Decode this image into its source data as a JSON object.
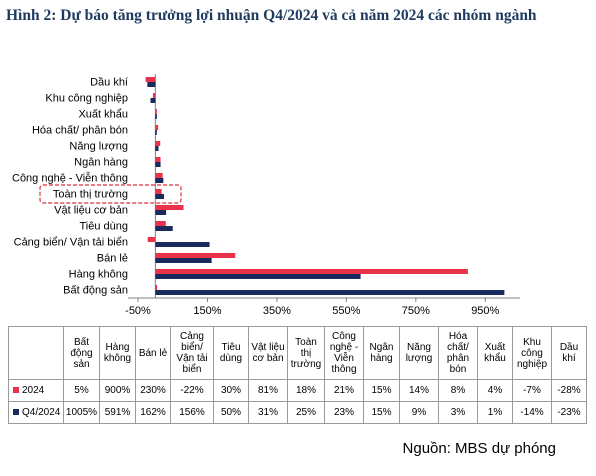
{
  "title": "Hình 2: Dự báo tăng trưởng lợi nhuận Q4/2024 và cả năm 2024 các nhóm ngành",
  "source": "Nguồn: MBS dự phóng",
  "colors": {
    "series_2024": "#e8334a",
    "series_q4": "#1b2a5c",
    "highlight": "#d9303f"
  },
  "chart_data": {
    "type": "bar",
    "orientation": "horizontal",
    "categories": [
      "Bất động sản",
      "Hàng không",
      "Bán lẻ",
      "Cảng biển/ Vận tải biển",
      "Tiêu dùng",
      "Vật liệu cơ bản",
      "Toàn thị trường",
      "Công nghệ - Viễn thông",
      "Ngân hàng",
      "Năng lượng",
      "Hóa chất/ phân bón",
      "Xuất khẩu",
      "Khu công nghiệp",
      "Dầu khí"
    ],
    "table_headers": [
      "Bất động sản",
      "Hàng không",
      "Bán lẻ",
      "Cảng biển/ Vận tải biển",
      "Tiêu dùng",
      "Vật liệu cơ bản",
      "Toàn thị trường",
      "Công nghệ - Viễn thông",
      "Ngân hàng",
      "Năng lượng",
      "Hóa chất/ phân bón",
      "Xuất khẩu",
      "Khu công nghiệp",
      "Dầu khí"
    ],
    "series": [
      {
        "name": "2024",
        "values": [
          5,
          900,
          230,
          -22,
          30,
          81,
          18,
          21,
          15,
          14,
          8,
          4,
          -7,
          -28
        ],
        "labels": [
          "5%",
          "900%",
          "230%",
          "-22%",
          "30%",
          "81%",
          "18%",
          "21%",
          "15%",
          "14%",
          "8%",
          "4%",
          "-7%",
          "-28%"
        ]
      },
      {
        "name": "Q4/2024",
        "values": [
          1005,
          591,
          162,
          156,
          50,
          31,
          25,
          23,
          15,
          9,
          3,
          1,
          -14,
          -23
        ],
        "labels": [
          "1005%",
          "591%",
          "162%",
          "156%",
          "50%",
          "31%",
          "25%",
          "23%",
          "15%",
          "9%",
          "3%",
          "1%",
          "-14%",
          "-23%"
        ]
      }
    ],
    "xlim": [
      -50,
      1050
    ],
    "xticks": [
      -50,
      150,
      350,
      550,
      750,
      950
    ],
    "xtick_labels": [
      "-50%",
      "150%",
      "350%",
      "550%",
      "750%",
      "950%"
    ],
    "highlighted_category": "Toàn thị trường",
    "grid": false,
    "legend": "table-bottom"
  }
}
